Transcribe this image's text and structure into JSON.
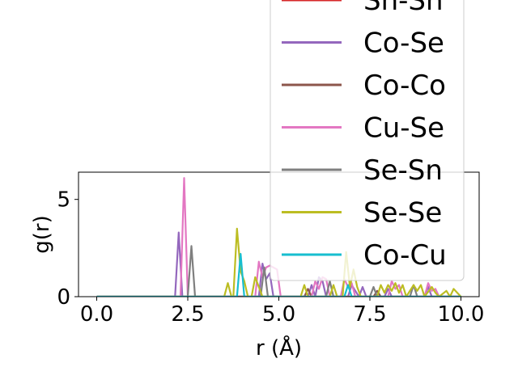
{
  "chart_data": {
    "type": "line",
    "xlabel": "r (Å)",
    "ylabel": "g(r)",
    "xlim": [
      -0.5,
      10.5
    ],
    "ylim": [
      0,
      6.4
    ],
    "xticks": [
      0.0,
      2.5,
      5.0,
      7.5,
      10.0
    ],
    "xtick_labels": [
      "0.0",
      "2.5",
      "5.0",
      "7.5",
      "10.0"
    ],
    "yticks": [
      0,
      5
    ],
    "ytick_labels": [
      "0",
      "5"
    ],
    "grid": false,
    "legend_position": "upper-right (extends above axes)",
    "series": [
      {
        "name": "Sn-Sn",
        "color": "#d62728",
        "points": [
          [
            0,
            0
          ],
          [
            10,
            0
          ]
        ]
      },
      {
        "name": "Co-Se",
        "color": "#9467bd",
        "points": [
          [
            0,
            0
          ],
          [
            2.15,
            0
          ],
          [
            2.25,
            3.3
          ],
          [
            2.35,
            0
          ],
          [
            4.45,
            0
          ],
          [
            4.55,
            1.7
          ],
          [
            4.65,
            0.9
          ],
          [
            4.75,
            1.2
          ],
          [
            4.85,
            0
          ],
          [
            5.8,
            0
          ],
          [
            5.9,
            0.6
          ],
          [
            6.0,
            0
          ],
          [
            6.1,
            1.0
          ],
          [
            6.2,
            0.8
          ],
          [
            6.3,
            0
          ],
          [
            6.9,
            0
          ],
          [
            7.0,
            0.6
          ],
          [
            7.1,
            0.3
          ],
          [
            7.2,
            0
          ],
          [
            7.3,
            0.5
          ],
          [
            7.4,
            0
          ],
          [
            7.9,
            0
          ],
          [
            8.0,
            0.4
          ],
          [
            8.1,
            0
          ],
          [
            9.0,
            0
          ],
          [
            9.1,
            0.5
          ],
          [
            9.2,
            0
          ],
          [
            10,
            0
          ]
        ]
      },
      {
        "name": "Co-Co",
        "color": "#8c564b",
        "points": [
          [
            0,
            0
          ],
          [
            5.7,
            0
          ],
          [
            5.8,
            0.4
          ],
          [
            5.9,
            0
          ],
          [
            7.6,
            0
          ],
          [
            7.7,
            0.3
          ],
          [
            7.8,
            0
          ],
          [
            10,
            0
          ]
        ]
      },
      {
        "name": "Cu-Se",
        "color": "#e377c2",
        "points": [
          [
            0,
            0
          ],
          [
            2.3,
            0
          ],
          [
            2.4,
            6.1
          ],
          [
            2.5,
            0
          ],
          [
            4.35,
            0
          ],
          [
            4.45,
            1.8
          ],
          [
            4.55,
            1.0
          ],
          [
            4.65,
            1.5
          ],
          [
            4.75,
            1.6
          ],
          [
            4.85,
            1.5
          ],
          [
            4.95,
            1.4
          ],
          [
            5.05,
            0
          ],
          [
            5.9,
            0
          ],
          [
            6.0,
            0.8
          ],
          [
            6.1,
            0.4
          ],
          [
            6.2,
            1.0
          ],
          [
            6.3,
            0.9
          ],
          [
            6.4,
            0
          ],
          [
            6.7,
            0
          ],
          [
            6.8,
            0.9
          ],
          [
            6.9,
            0.5
          ],
          [
            7.0,
            0.7
          ],
          [
            7.1,
            0
          ],
          [
            8.0,
            0
          ],
          [
            8.1,
            0.8
          ],
          [
            8.2,
            0.4
          ],
          [
            8.3,
            0.6
          ],
          [
            8.4,
            0
          ],
          [
            9.0,
            0
          ],
          [
            9.1,
            0.7
          ],
          [
            9.2,
            0.3
          ],
          [
            9.3,
            0.4
          ],
          [
            9.4,
            0
          ],
          [
            10,
            0
          ]
        ]
      },
      {
        "name": "Se-Sn",
        "color": "#7f7f7f",
        "points": [
          [
            0,
            0
          ],
          [
            2.5,
            0
          ],
          [
            2.6,
            2.6
          ],
          [
            2.7,
            0
          ],
          [
            4.5,
            0
          ],
          [
            4.6,
            1.5
          ],
          [
            4.7,
            0
          ],
          [
            6.3,
            0
          ],
          [
            6.4,
            0.8
          ],
          [
            6.5,
            0
          ],
          [
            7.5,
            0
          ],
          [
            7.6,
            0.5
          ],
          [
            7.7,
            0
          ],
          [
            8.6,
            0
          ],
          [
            8.7,
            0.6
          ],
          [
            8.8,
            0
          ],
          [
            10,
            0
          ]
        ]
      },
      {
        "name": "Se-Se",
        "color": "#bcbd22",
        "points": [
          [
            0,
            0
          ],
          [
            3.5,
            0
          ],
          [
            3.6,
            0.7
          ],
          [
            3.7,
            0
          ],
          [
            3.75,
            0
          ],
          [
            3.85,
            3.5
          ],
          [
            3.95,
            1.3
          ],
          [
            4.05,
            0.8
          ],
          [
            4.15,
            0
          ],
          [
            4.25,
            0
          ],
          [
            4.35,
            1.0
          ],
          [
            4.45,
            0.5
          ],
          [
            4.55,
            0
          ],
          [
            5.6,
            0
          ],
          [
            5.7,
            0.6
          ],
          [
            5.8,
            0
          ],
          [
            6.4,
            0
          ],
          [
            6.5,
            0.6
          ],
          [
            6.6,
            0
          ],
          [
            6.75,
            0
          ],
          [
            6.85,
            2.3
          ],
          [
            6.95,
            0.5
          ],
          [
            7.05,
            1.4
          ],
          [
            7.15,
            0.5
          ],
          [
            7.25,
            0
          ],
          [
            7.7,
            0
          ],
          [
            7.8,
            0.6
          ],
          [
            7.9,
            0.2
          ],
          [
            8.0,
            0.6
          ],
          [
            8.1,
            0.3
          ],
          [
            8.2,
            0.7
          ],
          [
            8.3,
            0.2
          ],
          [
            8.4,
            0.6
          ],
          [
            8.5,
            0
          ],
          [
            8.7,
            0.6
          ],
          [
            8.8,
            0.3
          ],
          [
            8.9,
            0.6
          ],
          [
            9.0,
            0
          ],
          [
            9.2,
            0.5
          ],
          [
            9.3,
            0.2
          ],
          [
            9.4,
            0
          ],
          [
            9.6,
            0.3
          ],
          [
            9.7,
            0
          ],
          [
            9.8,
            0.4
          ],
          [
            9.9,
            0.2
          ],
          [
            10,
            0
          ]
        ]
      },
      {
        "name": "Co-Cu",
        "color": "#17becf",
        "points": [
          [
            0,
            0
          ],
          [
            3.85,
            0
          ],
          [
            3.95,
            2.2
          ],
          [
            4.05,
            0
          ],
          [
            6.8,
            0
          ],
          [
            6.9,
            0.6
          ],
          [
            7.0,
            0
          ],
          [
            10,
            0
          ]
        ]
      }
    ]
  }
}
